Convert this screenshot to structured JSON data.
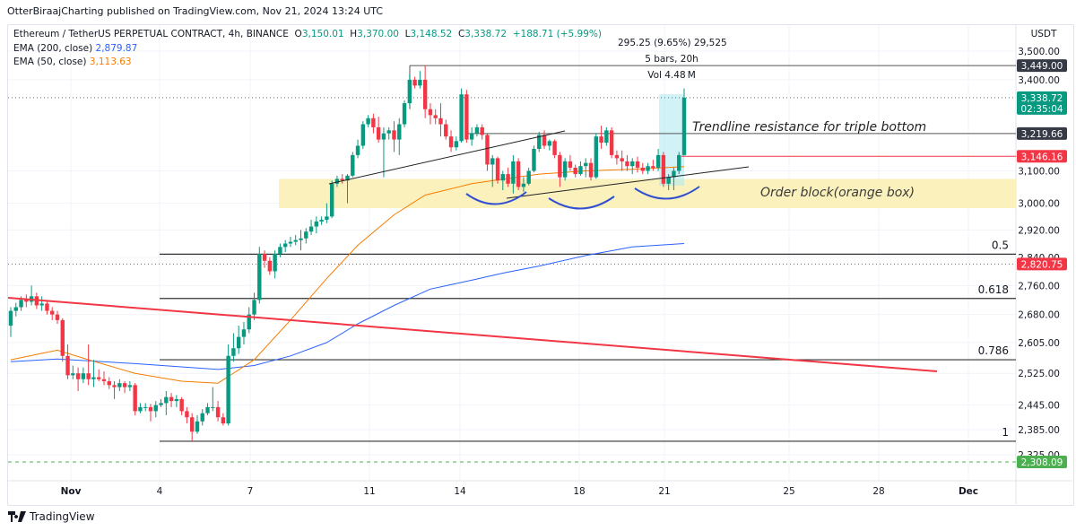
{
  "header": {
    "published": "OtterBiraajCharting published on TradingView.com, Nov 21, 2024 13:24 UTC",
    "symbol": "Ethereum / TetherUS PERPETUAL CONTRACT, 4h, BINANCE",
    "o_label": "O",
    "o": "3,150.01",
    "h_label": "H",
    "h": "3,370.00",
    "l_label": "L",
    "l": "3,148.52",
    "c_label": "C",
    "c": "3,338.72",
    "change": "+188.71 (+5.99%)",
    "ema200_label": "EMA (200, close)",
    "ema200_value": "2,879.87",
    "ema50_label": "EMA (50, close)",
    "ema50_value": "3,113.63"
  },
  "footer": {
    "brand": "TradingView",
    "logo_icon": "tradingview-logo-icon"
  },
  "colors": {
    "up": "#089981",
    "down": "#f23645",
    "ema200": "#2962ff",
    "ema50": "#f57c00",
    "trend_red": "#f23645",
    "order_block": "#fbf1bd",
    "measure": "#b2ebf2"
  },
  "chart_data": {
    "type": "candlestick",
    "currency": "USDT",
    "scale": "log",
    "ylim": [
      2325,
      3500
    ],
    "grid": true,
    "y_ticks": [
      "3,500.00",
      "3,400.00",
      "3,100.00",
      "3,000.00",
      "2,920.00",
      "2,840.00",
      "2,760.00",
      "2,680.00",
      "2,605.00",
      "2,525.00",
      "2,445.00",
      "2,385.00",
      "2,325.00"
    ],
    "x_ticks": [
      "Nov",
      "4",
      "7",
      "11",
      "14",
      "18",
      "21",
      "25",
      "28",
      "Dec"
    ],
    "candles": [
      [
        2650,
        2700,
        2620,
        2690
      ],
      [
        2690,
        2712,
        2675,
        2700
      ],
      [
        2700,
        2730,
        2690,
        2720
      ],
      [
        2720,
        2735,
        2700,
        2715
      ],
      [
        2715,
        2760,
        2705,
        2730
      ],
      [
        2730,
        2740,
        2695,
        2705
      ],
      [
        2705,
        2730,
        2690,
        2710
      ],
      [
        2710,
        2718,
        2680,
        2690
      ],
      [
        2690,
        2700,
        2665,
        2680
      ],
      [
        2680,
        2690,
        2655,
        2665
      ],
      [
        2665,
        2670,
        2555,
        2570
      ],
      [
        2570,
        2600,
        2510,
        2520
      ],
      [
        2520,
        2545,
        2510,
        2525
      ],
      [
        2525,
        2540,
        2480,
        2510
      ],
      [
        2510,
        2540,
        2500,
        2525
      ],
      [
        2525,
        2600,
        2495,
        2510
      ],
      [
        2510,
        2560,
        2490,
        2515
      ],
      [
        2515,
        2535,
        2505,
        2510
      ],
      [
        2510,
        2530,
        2495,
        2505
      ],
      [
        2505,
        2515,
        2485,
        2495
      ],
      [
        2495,
        2505,
        2460,
        2490
      ],
      [
        2490,
        2510,
        2480,
        2500
      ],
      [
        2500,
        2505,
        2475,
        2490
      ],
      [
        2490,
        2505,
        2480,
        2495
      ],
      [
        2495,
        2500,
        2420,
        2430
      ],
      [
        2430,
        2450,
        2425,
        2440
      ],
      [
        2440,
        2450,
        2430,
        2440
      ],
      [
        2440,
        2448,
        2405,
        2430
      ],
      [
        2430,
        2455,
        2415,
        2445
      ],
      [
        2445,
        2460,
        2440,
        2450
      ],
      [
        2450,
        2480,
        2420,
        2465
      ],
      [
        2465,
        2475,
        2440,
        2455
      ],
      [
        2455,
        2470,
        2440,
        2460
      ],
      [
        2460,
        2465,
        2420,
        2430
      ],
      [
        2430,
        2440,
        2400,
        2415
      ],
      [
        2415,
        2425,
        2357,
        2380
      ],
      [
        2380,
        2420,
        2375,
        2405
      ],
      [
        2405,
        2435,
        2395,
        2425
      ],
      [
        2425,
        2450,
        2420,
        2440
      ],
      [
        2440,
        2490,
        2430,
        2440
      ],
      [
        2440,
        2455,
        2405,
        2415
      ],
      [
        2415,
        2425,
        2395,
        2400
      ],
      [
        2400,
        2600,
        2395,
        2570
      ],
      [
        2570,
        2630,
        2555,
        2590
      ],
      [
        2590,
        2650,
        2575,
        2620
      ],
      [
        2620,
        2660,
        2600,
        2640
      ],
      [
        2640,
        2700,
        2630,
        2680
      ],
      [
        2680,
        2740,
        2665,
        2720
      ],
      [
        2720,
        2870,
        2710,
        2850
      ],
      [
        2850,
        2860,
        2810,
        2830
      ],
      [
        2830,
        2840,
        2790,
        2800
      ],
      [
        2800,
        2860,
        2780,
        2850
      ],
      [
        2850,
        2880,
        2840,
        2870
      ],
      [
        2870,
        2890,
        2855,
        2880
      ],
      [
        2880,
        2900,
        2870,
        2885
      ],
      [
        2885,
        2905,
        2875,
        2890
      ],
      [
        2890,
        2920,
        2860,
        2895
      ],
      [
        2895,
        2925,
        2880,
        2915
      ],
      [
        2915,
        2950,
        2905,
        2930
      ],
      [
        2930,
        2960,
        2910,
        2945
      ],
      [
        2945,
        2960,
        2935,
        2950
      ],
      [
        2950,
        3000,
        2940,
        2960
      ],
      [
        2960,
        3070,
        2955,
        3060
      ],
      [
        3060,
        3085,
        3050,
        3075
      ],
      [
        3075,
        3090,
        3060,
        3070
      ],
      [
        3070,
        3090,
        3000,
        3085
      ],
      [
        3085,
        3160,
        3080,
        3150
      ],
      [
        3150,
        3200,
        3140,
        3180
      ],
      [
        3180,
        3260,
        3170,
        3250
      ],
      [
        3250,
        3280,
        3240,
        3270
      ],
      [
        3270,
        3285,
        3220,
        3240
      ],
      [
        3240,
        3275,
        3190,
        3200
      ],
      [
        3200,
        3240,
        3080,
        3220
      ],
      [
        3220,
        3240,
        3200,
        3230
      ],
      [
        3230,
        3260,
        3160,
        3200
      ],
      [
        3200,
        3270,
        3150,
        3250
      ],
      [
        3250,
        3330,
        3240,
        3320
      ],
      [
        3320,
        3420,
        3310,
        3400
      ],
      [
        3400,
        3410,
        3370,
        3380
      ],
      [
        3380,
        3430,
        3370,
        3400
      ],
      [
        3400,
        3449,
        3270,
        3300
      ],
      [
        3300,
        3320,
        3250,
        3280
      ],
      [
        3280,
        3300,
        3250,
        3270
      ],
      [
        3270,
        3320,
        3210,
        3250
      ],
      [
        3250,
        3265,
        3200,
        3210
      ],
      [
        3210,
        3230,
        3160,
        3175
      ],
      [
        3175,
        3210,
        3165,
        3195
      ],
      [
        3195,
        3370,
        3190,
        3350
      ],
      [
        3350,
        3365,
        3190,
        3200
      ],
      [
        3200,
        3240,
        3180,
        3220
      ],
      [
        3220,
        3250,
        3210,
        3240
      ],
      [
        3240,
        3250,
        3200,
        3215
      ],
      [
        3215,
        3220,
        3100,
        3120
      ],
      [
        3120,
        3150,
        3050,
        3140
      ],
      [
        3140,
        3145,
        3060,
        3070
      ],
      [
        3070,
        3100,
        3040,
        3090
      ],
      [
        3090,
        3110,
        3050,
        3060
      ],
      [
        3060,
        3150,
        3030,
        3130
      ],
      [
        3130,
        3140,
        3040,
        3050
      ],
      [
        3050,
        3080,
        3035,
        3060
      ],
      [
        3060,
        3110,
        3055,
        3100
      ],
      [
        3100,
        3180,
        3095,
        3170
      ],
      [
        3170,
        3225,
        3160,
        3215
      ],
      [
        3215,
        3230,
        3170,
        3180
      ],
      [
        3180,
        3200,
        3165,
        3195
      ],
      [
        3195,
        3200,
        3140,
        3150
      ],
      [
        3150,
        3160,
        3050,
        3080
      ],
      [
        3080,
        3140,
        3070,
        3130
      ],
      [
        3130,
        3150,
        3100,
        3110
      ],
      [
        3110,
        3120,
        3080,
        3090
      ],
      [
        3090,
        3130,
        3085,
        3115
      ],
      [
        3115,
        3140,
        3080,
        3125
      ],
      [
        3125,
        3140,
        3070,
        3080
      ],
      [
        3080,
        3220,
        3075,
        3210
      ],
      [
        3210,
        3245,
        3170,
        3190
      ],
      [
        3190,
        3240,
        3180,
        3230
      ],
      [
        3230,
        3240,
        3140,
        3150
      ],
      [
        3150,
        3165,
        3120,
        3140
      ],
      [
        3140,
        3165,
        3100,
        3130
      ],
      [
        3130,
        3150,
        3100,
        3115
      ],
      [
        3115,
        3140,
        3090,
        3130
      ],
      [
        3130,
        3145,
        3095,
        3110
      ],
      [
        3110,
        3125,
        3090,
        3100
      ],
      [
        3100,
        3125,
        3090,
        3115
      ],
      [
        3115,
        3135,
        3100,
        3110
      ],
      [
        3110,
        3170,
        3100,
        3150
      ],
      [
        3150,
        3160,
        3050,
        3060
      ],
      [
        3060,
        3090,
        3040,
        3080
      ],
      [
        3080,
        3110,
        3040,
        3100
      ],
      [
        3100,
        3160,
        3090,
        3150
      ],
      [
        3150.01,
        3370,
        3148.52,
        3338.72
      ]
    ],
    "series": [
      {
        "name": "EMA (200, close)",
        "color": "#2962ff",
        "points": [
          [
            0,
            2555
          ],
          [
            9,
            2562
          ],
          [
            24,
            2550
          ],
          [
            40,
            2535
          ],
          [
            47,
            2545
          ],
          [
            54,
            2570
          ],
          [
            61,
            2605
          ],
          [
            67,
            2655
          ],
          [
            74,
            2705
          ],
          [
            81,
            2750
          ],
          [
            89,
            2775
          ],
          [
            95,
            2795
          ],
          [
            102,
            2815
          ],
          [
            111,
            2845
          ],
          [
            120,
            2870
          ],
          [
            130,
            2879.87
          ]
        ]
      },
      {
        "name": "EMA (50, close)",
        "color": "#f57c00",
        "points": [
          [
            0,
            2560
          ],
          [
            9,
            2585
          ],
          [
            15,
            2560
          ],
          [
            24,
            2525
          ],
          [
            33,
            2505
          ],
          [
            40,
            2500
          ],
          [
            47,
            2560
          ],
          [
            54,
            2665
          ],
          [
            61,
            2780
          ],
          [
            67,
            2875
          ],
          [
            74,
            2965
          ],
          [
            80,
            3025
          ],
          [
            89,
            3060
          ],
          [
            95,
            3074
          ],
          [
            102,
            3090
          ],
          [
            111,
            3100
          ],
          [
            120,
            3105
          ],
          [
            130,
            3113.63
          ]
        ]
      }
    ],
    "price_labels": [
      {
        "text": "3,449.00",
        "price": 3449,
        "bg": "#363a45"
      },
      {
        "text": "3,338.72",
        "sub": "02:35:04",
        "price": 3338.72,
        "bg": "#089981"
      },
      {
        "text": "3,219.66",
        "price": 3219.66,
        "bg": "#363a45"
      },
      {
        "text": "3,146.16",
        "price": 3146.16,
        "bg": "#f23645"
      },
      {
        "text": "2,820.75",
        "price": 2820.75,
        "bg": "#f23645"
      },
      {
        "text": "2,308.09",
        "price": 2308.09,
        "bg": "#4caf50"
      }
    ],
    "fib_levels": [
      {
        "label": "0.5",
        "price": 2849
      },
      {
        "label": "0.618",
        "price": 2724
      },
      {
        "label": "0.786",
        "price": 2560
      },
      {
        "label": "1",
        "price": 2357
      }
    ],
    "order_block": {
      "top": 3075,
      "bottom": 2985,
      "label": "Order block(orange box)"
    },
    "annotations": {
      "trendline_note": "Trendline resistance for triple bottom",
      "measure_line1": "295.25 (9.65%) 29,525",
      "measure_line2": "5 bars, 20h",
      "measure_line3": "Vol 4.48 M"
    }
  }
}
